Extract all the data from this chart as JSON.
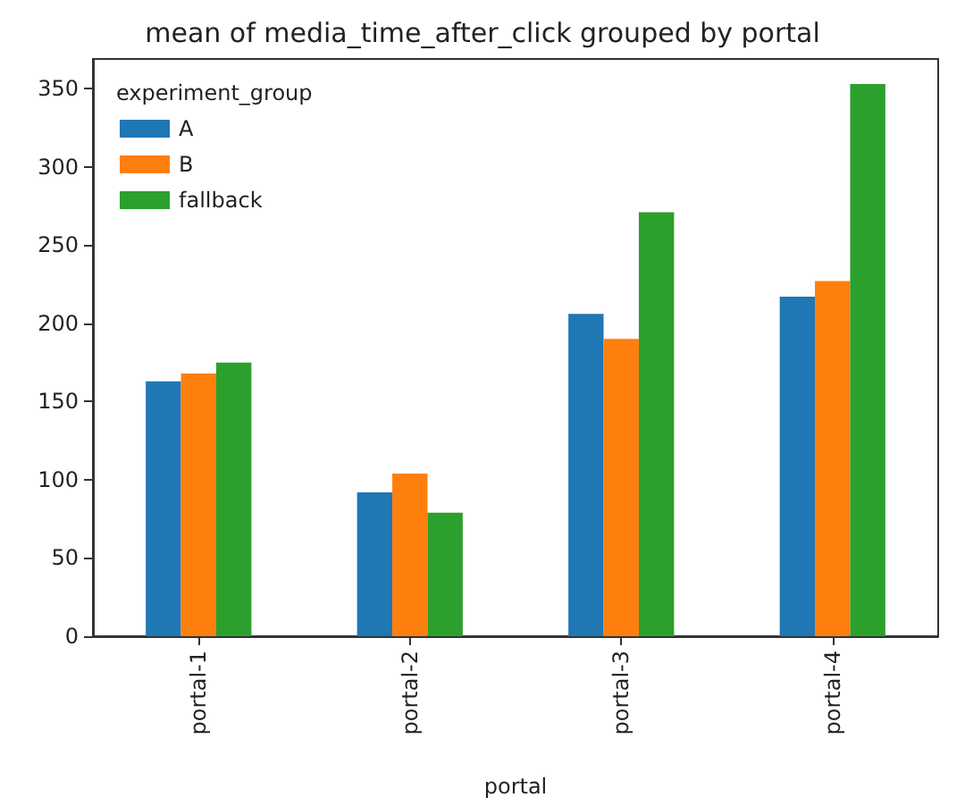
{
  "chart_data": {
    "type": "bar",
    "title": "mean of media_time_after_click grouped by portal",
    "xlabel": "portal",
    "legend_title": "experiment_group",
    "categories": [
      "portal-1",
      "portal-2",
      "portal-3",
      "portal-4"
    ],
    "series": [
      {
        "name": "A",
        "color": "#1f77b4",
        "values": [
          163,
          92,
          206,
          217
        ]
      },
      {
        "name": "B",
        "color": "#ff7f0e",
        "values": [
          168,
          104,
          190,
          227
        ]
      },
      {
        "name": "fallback",
        "color": "#2ca02c",
        "values": [
          175,
          79,
          271,
          353
        ]
      }
    ],
    "ylim": [
      0,
      369
    ],
    "yticks": [
      0,
      50,
      100,
      150,
      200,
      250,
      300,
      350
    ],
    "grid": false,
    "legend": "top left"
  }
}
